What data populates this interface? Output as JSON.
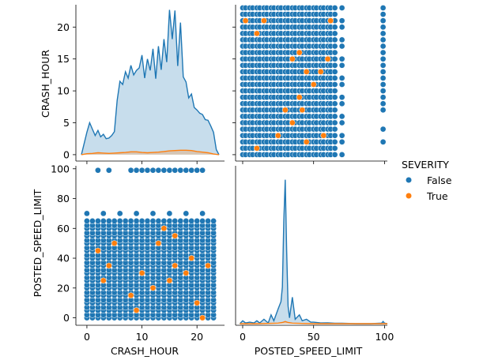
{
  "chart_data": {
    "type": "pairplot",
    "hue": "SEVERITY",
    "variables": [
      "CRASH_HOUR",
      "POSTED_SPEED_LIMIT"
    ],
    "legend": {
      "title": "SEVERITY",
      "placement": "right",
      "entries": [
        {
          "label": "False",
          "color": "#1f77b4"
        },
        {
          "label": "True",
          "color": "#ff7f0e"
        }
      ]
    },
    "axes": {
      "CRASH_HOUR": {
        "label": "CRASH_HOUR",
        "range": [
          -2,
          25
        ],
        "ticks": [
          0,
          10,
          20
        ],
        "tick_labels": [
          "0",
          "10",
          "20"
        ]
      },
      "POSTED_SPEED_LIMIT": {
        "label": "POSTED_SPEED_LIMIT",
        "range": [
          -5,
          102
        ],
        "ticks": [
          0,
          50,
          100
        ],
        "tick_labels": [
          "0",
          "50",
          "100"
        ]
      },
      "diag_hour_y": {
        "range": [
          -1,
          23.5
        ],
        "ticks": [
          0,
          5,
          10,
          15,
          20
        ],
        "tick_labels": [
          "0",
          "5",
          "10",
          "15",
          "20"
        ]
      },
      "speed_y": {
        "range": [
          -5,
          102
        ],
        "ticks": [
          0,
          20,
          40,
          60,
          80,
          100
        ],
        "tick_labels": [
          "0",
          "20",
          "40",
          "60",
          "80",
          "100"
        ]
      }
    },
    "panels": [
      {
        "name": "CRASH_HOUR_kde",
        "type": "kde",
        "x_var": "CRASH_HOUR",
        "series": [
          {
            "name": "False",
            "color": "#1f77b4",
            "x": [
              -1,
              0,
              0.5,
              1,
              1.5,
              2,
              2.5,
              3,
              3.5,
              4,
              4.5,
              5,
              5.5,
              6,
              6.5,
              7,
              7.5,
              8,
              8.5,
              9,
              9.5,
              10,
              10.5,
              11,
              11.5,
              12,
              12.5,
              13,
              13.5,
              14,
              14.5,
              15,
              15.5,
              16,
              16.5,
              17,
              17.5,
              18,
              18.5,
              19,
              19.5,
              20,
              20.5,
              21,
              21.5,
              22,
              22.5,
              23,
              23.5,
              24
            ],
            "y": [
              0,
              3.5,
              5,
              4,
              3,
              3.8,
              2.8,
              3.2,
              2.5,
              2.6,
              3.0,
              3.6,
              8.5,
              11.5,
              11,
              13,
              12,
              14,
              12.5,
              13.2,
              13.6,
              15.6,
              12.0,
              15.0,
              13.2,
              16.6,
              11.9,
              17.0,
              13.3,
              18.1,
              14.5,
              22.7,
              18.1,
              22.6,
              13.9,
              20.7,
              12.2,
              11.4,
              8.9,
              9.5,
              7.4,
              7.0,
              6.5,
              6.3,
              5.5,
              5.4,
              4.5,
              3.5,
              0.8,
              0
            ]
          },
          {
            "name": "True",
            "color": "#ff7f0e",
            "x": [
              -1,
              0,
              1,
              2,
              3,
              4,
              5,
              6,
              7,
              8,
              9,
              10,
              11,
              12,
              13,
              14,
              15,
              16,
              17,
              18,
              19,
              20,
              21,
              22,
              23,
              24
            ],
            "y": [
              0,
              0.15,
              0.2,
              0.3,
              0.25,
              0.2,
              0.25,
              0.3,
              0.35,
              0.45,
              0.45,
              0.35,
              0.3,
              0.35,
              0.4,
              0.5,
              0.6,
              0.65,
              0.7,
              0.7,
              0.65,
              0.5,
              0.4,
              0.3,
              0.1,
              0
            ]
          }
        ]
      },
      {
        "name": "speed_vs_hour_scatter",
        "type": "scatter",
        "x_var": "POSTED_SPEED_LIMIT",
        "y_var": "CRASH_HOUR",
        "columns_false": [
          0,
          2,
          5,
          7,
          10,
          12,
          15,
          17,
          20,
          22,
          25,
          27,
          30,
          32,
          35,
          37,
          40,
          42,
          45,
          47,
          50,
          52,
          55,
          57,
          60,
          62,
          65,
          70,
          99
        ],
        "true_points": [
          [
            2,
            21
          ],
          [
            10,
            19
          ],
          [
            15,
            21
          ],
          [
            35,
            15
          ],
          [
            40,
            16
          ],
          [
            45,
            13
          ],
          [
            50,
            11
          ],
          [
            30,
            7
          ],
          [
            35,
            5
          ],
          [
            40,
            9
          ],
          [
            55,
            13
          ],
          [
            57,
            3
          ],
          [
            60,
            15
          ],
          [
            62,
            21
          ],
          [
            10,
            1
          ],
          [
            25,
            3
          ],
          [
            42,
            7
          ],
          [
            45,
            2
          ]
        ]
      },
      {
        "name": "hour_vs_speed_scatter",
        "type": "scatter",
        "x_var": "CRASH_HOUR",
        "y_var": "POSTED_SPEED_LIMIT",
        "rows_false": [
          0,
          2,
          5,
          7,
          10,
          12,
          15,
          17,
          20,
          22,
          25,
          27,
          30,
          32,
          35,
          37,
          40,
          42,
          45,
          47,
          50,
          52,
          55,
          57,
          60,
          62,
          65,
          70,
          99
        ],
        "true_points": [
          [
            2,
            45
          ],
          [
            5,
            50
          ],
          [
            10,
            30
          ],
          [
            13,
            50
          ],
          [
            14,
            60
          ],
          [
            16,
            35
          ],
          [
            16,
            55
          ],
          [
            18,
            30
          ],
          [
            3,
            25
          ],
          [
            8,
            15
          ],
          [
            12,
            20
          ],
          [
            20,
            10
          ],
          [
            21,
            0
          ],
          [
            4,
            35
          ],
          [
            9,
            5
          ],
          [
            15,
            25
          ],
          [
            22,
            35
          ],
          [
            19,
            40
          ]
        ]
      },
      {
        "name": "POSTED_SPEED_LIMIT_kde",
        "type": "kde",
        "x_var": "POSTED_SPEED_LIMIT",
        "ylim": [
          0,
          100
        ],
        "series": [
          {
            "name": "False",
            "color": "#1f77b4",
            "x": [
              -2,
              0,
              2,
              5,
              8,
              10,
              12,
              15,
              18,
              20,
              22,
              25,
              27,
              28,
              29,
              30,
              31,
              32,
              33,
              35,
              37,
              40,
              42,
              45,
              48,
              50,
              55,
              60,
              65,
              70,
              80,
              90,
              98,
              99,
              100,
              102
            ],
            "y": [
              0,
              2,
              0.5,
              1,
              0.5,
              2,
              0.5,
              3,
              0.5,
              6,
              2,
              10,
              15,
              25,
              70,
              98,
              50,
              12,
              4,
              18,
              3,
              6,
              2,
              3,
              1,
              1,
              0.5,
              0.6,
              0.3,
              0.3,
              0,
              0,
              0.4,
              1.5,
              0.4,
              0
            ]
          },
          {
            "name": "True",
            "color": "#ff7f0e",
            "x": [
              -2,
              10,
              20,
              25,
              28,
              30,
              32,
              35,
              40,
              50,
              102
            ],
            "y": [
              0,
              0,
              0.2,
              0.4,
              0.8,
              1.5,
              0.8,
              0.4,
              0.2,
              0,
              0
            ]
          }
        ]
      }
    ]
  }
}
